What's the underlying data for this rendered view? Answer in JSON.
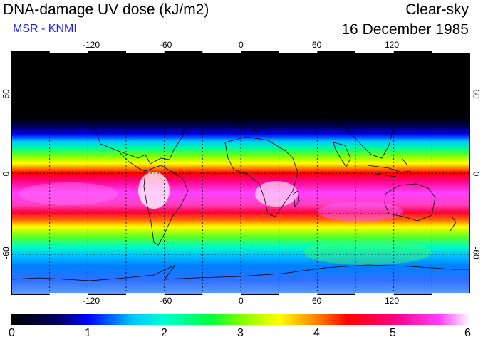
{
  "header": {
    "title": "DNA-damage UV dose (kJ/m2)",
    "subtitle": "MSR - KNMI",
    "condition": "Clear-sky",
    "date": "16 December 1985"
  },
  "colors": {
    "subtitle": "#1a1aff",
    "frame": "#000000",
    "background": "#ffffff"
  },
  "map": {
    "lon_ticks_top": [
      "-120",
      "-60",
      "0",
      "60",
      "120"
    ],
    "lon_ticks_bottom": [
      "-120",
      "-60",
      "0",
      "60",
      "120"
    ],
    "lat_ticks_left": [
      "60",
      "0",
      "-60"
    ],
    "lat_ticks_right": [
      "60",
      "0",
      "-60"
    ],
    "lon_range": [
      -180,
      180
    ],
    "lat_range": [
      -90,
      90
    ],
    "gridlines": "dotted every 30 degrees"
  },
  "colorbar": {
    "labels": [
      "0",
      "1",
      "2",
      "3",
      "4",
      "5",
      "6"
    ],
    "range": [
      0,
      6
    ],
    "stops": [
      {
        "value": 0.0,
        "color": "#000000"
      },
      {
        "value": 0.6,
        "color": "#000060"
      },
      {
        "value": 1.0,
        "color": "#0000ff"
      },
      {
        "value": 1.6,
        "color": "#00c8ff"
      },
      {
        "value": 2.0,
        "color": "#00ffd0"
      },
      {
        "value": 2.6,
        "color": "#00ff40"
      },
      {
        "value": 3.0,
        "color": "#80ff00"
      },
      {
        "value": 3.5,
        "color": "#ffff00"
      },
      {
        "value": 4.0,
        "color": "#ff8000"
      },
      {
        "value": 4.4,
        "color": "#ff0000"
      },
      {
        "value": 5.0,
        "color": "#ff0080"
      },
      {
        "value": 5.6,
        "color": "#ff40ff"
      },
      {
        "value": 6.0,
        "color": "#ffffff"
      }
    ]
  }
}
